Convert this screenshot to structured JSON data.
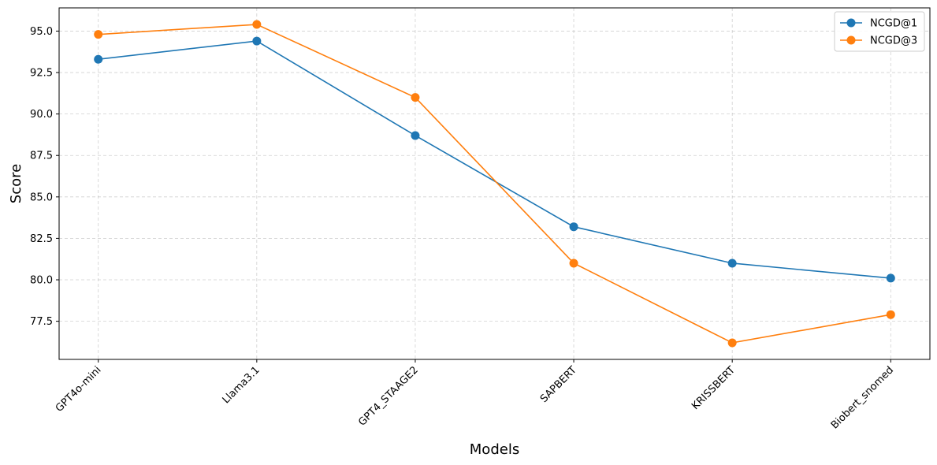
{
  "chart_data": {
    "type": "line",
    "categories": [
      "GPT4o-mini",
      "Llama3.1",
      "GPT4_STAAGE2",
      "SAPBERT",
      "KRISSBERT",
      "Biobert_snomed"
    ],
    "series": [
      {
        "name": "NCGD@1",
        "color": "#1f77b4",
        "values": [
          93.3,
          94.4,
          88.7,
          83.2,
          81.0,
          80.1
        ]
      },
      {
        "name": "NCGD@3",
        "color": "#ff7f0e",
        "values": [
          94.8,
          95.4,
          91.0,
          81.0,
          76.2,
          77.9
        ]
      }
    ],
    "xlabel": "Models",
    "ylabel": "Score",
    "ylim": [
      75.2,
      96.4
    ],
    "yticks": [
      "77.5",
      "80.0",
      "82.5",
      "85.0",
      "87.5",
      "90.0",
      "92.5",
      "95.0"
    ],
    "grid": true,
    "legend_position": "top-right"
  }
}
